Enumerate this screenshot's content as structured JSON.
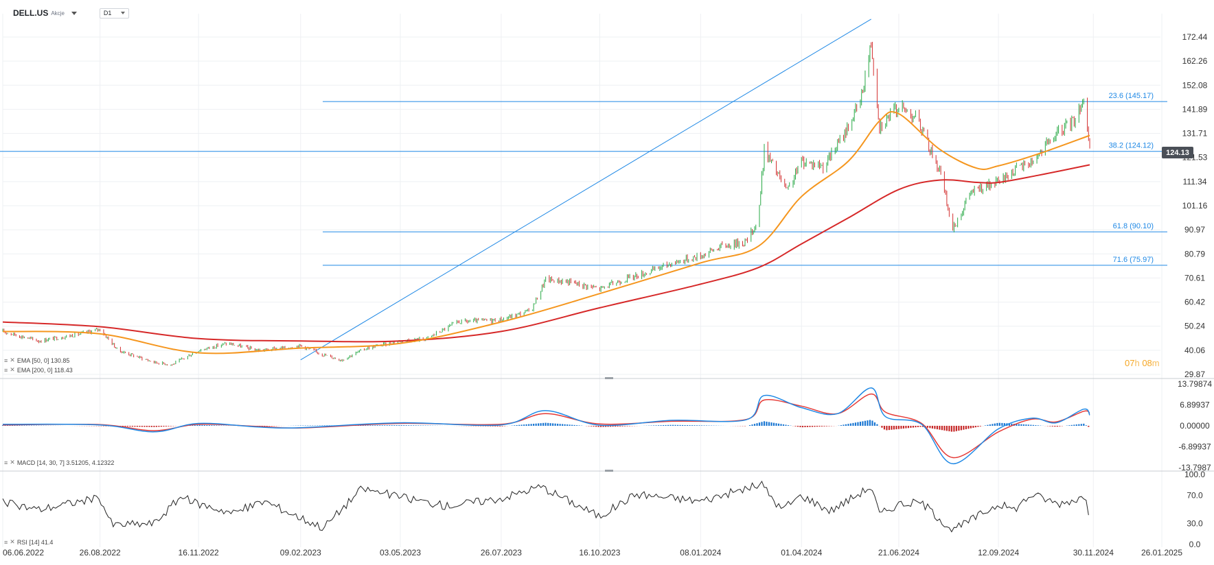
{
  "header": {
    "symbol": "DELL.US",
    "asset_type": "Akcje",
    "timeframe": "D1"
  },
  "countdown": {
    "hours": "07",
    "h_unit": "h",
    "minutes": "08",
    "m_unit": "m"
  },
  "current_price": "124.13",
  "colors": {
    "up_candle": "#27a844",
    "down_candle": "#d32f2f",
    "ema50": "#f5961e",
    "ema200": "#d62828",
    "macd_line": "#1e88e5",
    "signal_line": "#e53935",
    "hist_pos": "#1976d2",
    "hist_neg": "#c62828",
    "fib_line": "#1e88e5",
    "rsi_line": "#222222",
    "grid": "#eef0f3"
  },
  "indicators": {
    "ema50": "EMA [50, 0] 130.85",
    "ema200": "EMA [200, 0] 118.43",
    "macd": "MACD [14, 30, 7] 3.51205,  4.12322",
    "rsi": "RSI [14] 41.4"
  },
  "chart_data": [
    {
      "type": "candlestick",
      "panel": "price",
      "title": "DELL.US",
      "x_tick_labels": [
        "06.06.2022",
        "26.08.2022",
        "16.11.2022",
        "09.02.2023",
        "03.05.2023",
        "26.07.2023",
        "16.10.2023",
        "08.01.2024",
        "01.04.2024",
        "21.06.2024",
        "12.09.2024",
        "30.11.2024",
        "26.01.2025"
      ],
      "y_tick_labels": [
        "172.44",
        "162.26",
        "152.08",
        "141.89",
        "131.71",
        "121.53",
        "111.34",
        "101.16",
        "90.97",
        "80.79",
        "70.61",
        "60.42",
        "50.24",
        "40.06",
        "29.87"
      ],
      "ylim": [
        29.87,
        172.44
      ],
      "close_path": [
        {
          "x": "2022-06-06",
          "y": 48
        },
        {
          "x": "2022-07-06",
          "y": 44
        },
        {
          "x": "2022-08-10",
          "y": 47
        },
        {
          "x": "2022-08-26",
          "y": 49
        },
        {
          "x": "2022-09-10",
          "y": 40
        },
        {
          "x": "2022-10-10",
          "y": 35
        },
        {
          "x": "2022-10-25",
          "y": 34
        },
        {
          "x": "2022-11-16",
          "y": 40
        },
        {
          "x": "2022-12-10",
          "y": 43
        },
        {
          "x": "2023-01-05",
          "y": 40
        },
        {
          "x": "2023-01-25",
          "y": 41
        },
        {
          "x": "2023-02-09",
          "y": 42
        },
        {
          "x": "2023-03-01",
          "y": 38
        },
        {
          "x": "2023-03-15",
          "y": 36
        },
        {
          "x": "2023-04-05",
          "y": 41
        },
        {
          "x": "2023-05-03",
          "y": 44
        },
        {
          "x": "2023-05-25",
          "y": 45
        },
        {
          "x": "2023-06-20",
          "y": 52
        },
        {
          "x": "2023-07-26",
          "y": 53
        },
        {
          "x": "2023-08-20",
          "y": 57
        },
        {
          "x": "2023-09-01",
          "y": 70
        },
        {
          "x": "2023-09-20",
          "y": 69
        },
        {
          "x": "2023-10-16",
          "y": 66
        },
        {
          "x": "2023-11-05",
          "y": 70
        },
        {
          "x": "2023-11-25",
          "y": 73
        },
        {
          "x": "2023-12-15",
          "y": 77
        },
        {
          "x": "2024-01-08",
          "y": 80
        },
        {
          "x": "2024-01-25",
          "y": 84
        },
        {
          "x": "2024-02-15",
          "y": 86
        },
        {
          "x": "2024-02-25",
          "y": 95
        },
        {
          "x": "2024-03-01",
          "y": 125
        },
        {
          "x": "2024-03-20",
          "y": 107
        },
        {
          "x": "2024-04-01",
          "y": 120
        },
        {
          "x": "2024-04-20",
          "y": 118
        },
        {
          "x": "2024-05-05",
          "y": 130
        },
        {
          "x": "2024-05-20",
          "y": 145
        },
        {
          "x": "2024-05-29",
          "y": 170
        },
        {
          "x": "2024-06-05",
          "y": 135
        },
        {
          "x": "2024-06-21",
          "y": 143
        },
        {
          "x": "2024-07-05",
          "y": 139
        },
        {
          "x": "2024-07-25",
          "y": 116
        },
        {
          "x": "2024-08-05",
          "y": 91
        },
        {
          "x": "2024-08-20",
          "y": 107
        },
        {
          "x": "2024-09-12",
          "y": 111
        },
        {
          "x": "2024-09-25",
          "y": 116
        },
        {
          "x": "2024-10-10",
          "y": 120
        },
        {
          "x": "2024-10-30",
          "y": 131
        },
        {
          "x": "2024-11-15",
          "y": 138
        },
        {
          "x": "2024-11-22",
          "y": 147
        },
        {
          "x": "2024-11-27",
          "y": 124
        }
      ],
      "series": [
        {
          "name": "EMA [50, 0]",
          "last": 130.85,
          "values": [
            {
              "x": "2022-06-06",
              "y": 48
            },
            {
              "x": "2022-08-26",
              "y": 47
            },
            {
              "x": "2022-11-16",
              "y": 39
            },
            {
              "x": "2023-02-09",
              "y": 41
            },
            {
              "x": "2023-05-03",
              "y": 43
            },
            {
              "x": "2023-07-26",
              "y": 52
            },
            {
              "x": "2023-10-16",
              "y": 64
            },
            {
              "x": "2024-01-08",
              "y": 77
            },
            {
              "x": "2024-02-25",
              "y": 84
            },
            {
              "x": "2024-04-01",
              "y": 105
            },
            {
              "x": "2024-05-10",
              "y": 120
            },
            {
              "x": "2024-06-05",
              "y": 137
            },
            {
              "x": "2024-06-21",
              "y": 140
            },
            {
              "x": "2024-07-25",
              "y": 125
            },
            {
              "x": "2024-08-25",
              "y": 117
            },
            {
              "x": "2024-09-12",
              "y": 118
            },
            {
              "x": "2024-10-15",
              "y": 123
            },
            {
              "x": "2024-11-27",
              "y": 130.85
            }
          ]
        },
        {
          "name": "EMA [200, 0]",
          "last": 118.43,
          "values": [
            {
              "x": "2022-06-06",
              "y": 52
            },
            {
              "x": "2022-08-26",
              "y": 50
            },
            {
              "x": "2022-11-16",
              "y": 45
            },
            {
              "x": "2023-02-09",
              "y": 44
            },
            {
              "x": "2023-05-03",
              "y": 44
            },
            {
              "x": "2023-07-26",
              "y": 48
            },
            {
              "x": "2023-10-16",
              "y": 58
            },
            {
              "x": "2024-01-08",
              "y": 68
            },
            {
              "x": "2024-02-25",
              "y": 75
            },
            {
              "x": "2024-04-01",
              "y": 85
            },
            {
              "x": "2024-05-10",
              "y": 96
            },
            {
              "x": "2024-06-21",
              "y": 108
            },
            {
              "x": "2024-07-25",
              "y": 112
            },
            {
              "x": "2024-08-25",
              "y": 111
            },
            {
              "x": "2024-09-12",
              "y": 111
            },
            {
              "x": "2024-10-15",
              "y": 114
            },
            {
              "x": "2024-11-27",
              "y": 118.43
            }
          ]
        }
      ],
      "fibonacci_levels": [
        {
          "label": "23.6 (145.17)",
          "value": 145.17
        },
        {
          "label": "38.2 (124.12)",
          "value": 124.12
        },
        {
          "label": "61.8 (90.10)",
          "value": 90.1
        },
        {
          "label": "71.6 (75.97)",
          "value": 75.97
        }
      ],
      "trendline": {
        "from": {
          "x": "2023-02-09",
          "y": 36
        },
        "to": {
          "x": "2024-05-29",
          "y": 180
        }
      },
      "legend_placement": "bottom-left"
    },
    {
      "type": "line",
      "panel": "macd",
      "y_tick_labels": [
        "13.79874",
        "6.89937",
        "0.00000",
        "-6.89937",
        "-13.7987"
      ],
      "ylim": [
        -13.7987,
        13.79874
      ],
      "series": [
        {
          "name": "MACD",
          "last": 3.51205,
          "values": [
            {
              "x": "2022-06-06",
              "y": 0.5
            },
            {
              "x": "2022-08-26",
              "y": 0.3
            },
            {
              "x": "2022-10-10",
              "y": -2
            },
            {
              "x": "2022-11-16",
              "y": 0.8
            },
            {
              "x": "2023-01-05",
              "y": -0.4
            },
            {
              "x": "2023-02-09",
              "y": -0.6
            },
            {
              "x": "2023-05-03",
              "y": 1.0
            },
            {
              "x": "2023-07-26",
              "y": 0.3
            },
            {
              "x": "2023-09-01",
              "y": 5
            },
            {
              "x": "2023-10-16",
              "y": 0.2
            },
            {
              "x": "2023-12-15",
              "y": 1.8
            },
            {
              "x": "2024-02-15",
              "y": 2.0
            },
            {
              "x": "2024-03-01",
              "y": 10
            },
            {
              "x": "2024-04-01",
              "y": 6
            },
            {
              "x": "2024-05-01",
              "y": 4
            },
            {
              "x": "2024-05-29",
              "y": 12.5
            },
            {
              "x": "2024-06-10",
              "y": 3
            },
            {
              "x": "2024-07-10",
              "y": 0.5
            },
            {
              "x": "2024-08-05",
              "y": -12.5
            },
            {
              "x": "2024-09-12",
              "y": -1
            },
            {
              "x": "2024-10-10",
              "y": 2.5
            },
            {
              "x": "2024-10-30",
              "y": 1
            },
            {
              "x": "2024-11-22",
              "y": 5.5
            },
            {
              "x": "2024-11-27",
              "y": 3.51205
            }
          ]
        },
        {
          "name": "Signal",
          "last": 4.12322,
          "values": [
            {
              "x": "2022-06-06",
              "y": 0.3
            },
            {
              "x": "2022-08-26",
              "y": 0.4
            },
            {
              "x": "2022-10-10",
              "y": -1.6
            },
            {
              "x": "2022-11-16",
              "y": 0.5
            },
            {
              "x": "2023-01-05",
              "y": -0.2
            },
            {
              "x": "2023-02-09",
              "y": -0.7
            },
            {
              "x": "2023-05-03",
              "y": 0.8
            },
            {
              "x": "2023-07-26",
              "y": 0.5
            },
            {
              "x": "2023-09-01",
              "y": 4
            },
            {
              "x": "2023-10-16",
              "y": 0.6
            },
            {
              "x": "2023-12-15",
              "y": 1.5
            },
            {
              "x": "2024-02-15",
              "y": 2.1
            },
            {
              "x": "2024-03-01",
              "y": 8.5
            },
            {
              "x": "2024-04-01",
              "y": 6.5
            },
            {
              "x": "2024-05-01",
              "y": 4
            },
            {
              "x": "2024-05-29",
              "y": 10.5
            },
            {
              "x": "2024-06-10",
              "y": 4.5
            },
            {
              "x": "2024-07-10",
              "y": 0.8
            },
            {
              "x": "2024-08-05",
              "y": -10.5
            },
            {
              "x": "2024-09-12",
              "y": -2
            },
            {
              "x": "2024-10-10",
              "y": 2.2
            },
            {
              "x": "2024-10-30",
              "y": 1.3
            },
            {
              "x": "2024-11-22",
              "y": 4.8
            },
            {
              "x": "2024-11-27",
              "y": 4.12322
            }
          ]
        }
      ]
    },
    {
      "type": "line",
      "panel": "rsi",
      "y_tick_labels": [
        "100.0",
        "70.0",
        "30.0",
        "0.0"
      ],
      "ylim": [
        0,
        100
      ],
      "series": [
        {
          "name": "RSI [14]",
          "last": 41.4,
          "values": [
            {
              "x": "2022-06-06",
              "y": 60
            },
            {
              "x": "2022-07-06",
              "y": 50
            },
            {
              "x": "2022-08-10",
              "y": 62
            },
            {
              "x": "2022-08-26",
              "y": 66
            },
            {
              "x": "2022-09-05",
              "y": 28
            },
            {
              "x": "2022-10-10",
              "y": 30
            },
            {
              "x": "2022-11-01",
              "y": 68
            },
            {
              "x": "2022-11-16",
              "y": 58
            },
            {
              "x": "2022-12-15",
              "y": 45
            },
            {
              "x": "2023-01-10",
              "y": 62
            },
            {
              "x": "2023-02-09",
              "y": 38
            },
            {
              "x": "2023-02-28",
              "y": 24
            },
            {
              "x": "2023-04-01",
              "y": 80
            },
            {
              "x": "2023-05-03",
              "y": 68
            },
            {
              "x": "2023-06-10",
              "y": 55
            },
            {
              "x": "2023-07-26",
              "y": 66
            },
            {
              "x": "2023-08-28",
              "y": 83
            },
            {
              "x": "2023-10-16",
              "y": 40
            },
            {
              "x": "2023-11-15",
              "y": 72
            },
            {
              "x": "2024-01-08",
              "y": 62
            },
            {
              "x": "2024-02-28",
              "y": 86
            },
            {
              "x": "2024-03-15",
              "y": 50
            },
            {
              "x": "2024-04-01",
              "y": 70
            },
            {
              "x": "2024-04-25",
              "y": 48
            },
            {
              "x": "2024-05-29",
              "y": 83
            },
            {
              "x": "2024-06-05",
              "y": 43
            },
            {
              "x": "2024-06-21",
              "y": 58
            },
            {
              "x": "2024-07-10",
              "y": 60
            },
            {
              "x": "2024-08-05",
              "y": 20
            },
            {
              "x": "2024-09-12",
              "y": 58
            },
            {
              "x": "2024-09-25",
              "y": 50
            },
            {
              "x": "2024-10-10",
              "y": 72
            },
            {
              "x": "2024-11-01",
              "y": 58
            },
            {
              "x": "2024-11-22",
              "y": 68
            },
            {
              "x": "2024-11-27",
              "y": 41.4
            }
          ]
        }
      ]
    }
  ]
}
